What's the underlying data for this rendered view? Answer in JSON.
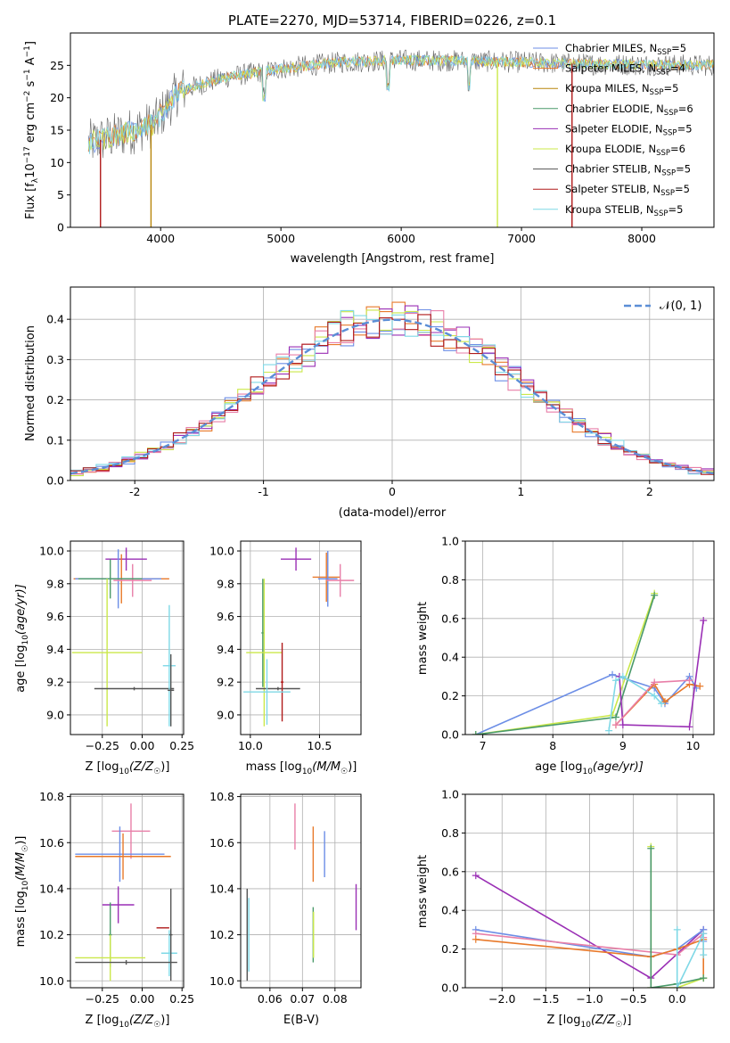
{
  "colors": {
    "Chabrier MILES": "#6c8ee6",
    "Salpeter MILES": "#e8792a",
    "Kroupa MILES": "#b8860b",
    "Chabrier ELODIE": "#4a9a6a",
    "Salpeter ELODIE": "#9a2fb5",
    "Kroupa ELODIE": "#cbe84a",
    "Chabrier STELIB": "#555555",
    "Salpeter STELIB": "#b01a1a",
    "Kroupa STELIB": "#7fd8e6",
    "Pink": "#e87fa8",
    "Normal": "#5b8ed6"
  },
  "chart_data": [
    {
      "id": "spectrum",
      "type": "line",
      "title": "PLATE=2270, MJD=53714, FIBERID=0226, z=0.1",
      "xlabel": "wavelength [Angstrom, rest frame]",
      "ylabel_main": "Flux [f",
      "ylabel_sub1": "λ",
      "ylabel_mid": "10",
      "ylabel_sup1": "−17",
      "ylabel_rest": " erg cm",
      "ylabel_sup2": "−2",
      "ylabel_rest2": " s",
      "ylabel_sup3": "−1",
      "ylabel_rest3": " A",
      "ylabel_sup4": "−1",
      "ylabel_end": "]",
      "xlim": [
        3250,
        8600
      ],
      "ylim": [
        0,
        30
      ],
      "xticks": [
        4000,
        5000,
        6000,
        7000,
        8000
      ],
      "yticks": [
        0,
        5,
        10,
        15,
        20,
        25
      ],
      "legend": [
        {
          "name": "Chabrier MILES, N",
          "sub": "SSP",
          "val": "=5"
        },
        {
          "name": "Salpeter MILES, N",
          "sub": "SSP",
          "val": "=4"
        },
        {
          "name": "Kroupa MILES, N",
          "sub": "SSP",
          "val": "=5"
        },
        {
          "name": "Chabrier ELODIE, N",
          "sub": "SSP",
          "val": "=6"
        },
        {
          "name": "Salpeter ELODIE, N",
          "sub": "SSP",
          "val": "=5"
        },
        {
          "name": "Kroupa ELODIE, N",
          "sub": "SSP",
          "val": "=6"
        },
        {
          "name": "Chabrier STELIB, N",
          "sub": "SSP",
          "val": "=5"
        },
        {
          "name": "Salpeter STELIB, N",
          "sub": "SSP",
          "val": "=5"
        },
        {
          "name": "Kroupa STELIB, N",
          "sub": "SSP",
          "val": "=5"
        }
      ],
      "spectrum_anchor": {
        "x": [
          3400,
          3700,
          3950,
          4150,
          4500,
          5000,
          5500,
          6000,
          6500,
          7000,
          7500,
          8600
        ],
        "y": [
          13,
          14.5,
          16,
          21,
          23,
          24.5,
          25.5,
          25.8,
          25.7,
          25.5,
          25.2,
          25
        ]
      },
      "drops": [
        {
          "x": 3500,
          "color": "Salpeter STELIB"
        },
        {
          "x": 3920,
          "color": "Kroupa MILES"
        },
        {
          "x": 6800,
          "color": "Kroupa ELODIE"
        },
        {
          "x": 7420,
          "color": "Salpeter STELIB"
        }
      ]
    },
    {
      "id": "residuals",
      "type": "line",
      "xlabel": "(data-model)/error",
      "ylabel": "Normed distribution",
      "xlim": [
        -2.5,
        2.5
      ],
      "ylim": [
        0,
        0.48
      ],
      "xticks": [
        -2,
        -1,
        0,
        1,
        2
      ],
      "yticks": [
        0.0,
        0.1,
        0.2,
        0.3,
        0.4
      ],
      "legend": "𝒩(0, 1)",
      "normal": {
        "mean": 0,
        "sigma": 1
      }
    },
    {
      "id": "age-vs-Z",
      "type": "scatter",
      "xlabel": "Z [log",
      "xlabel_sub": "10",
      "xlabel_rest": "(Z/Z",
      "xlabel_sub2": "☉",
      "xlabel_end": ")]",
      "ylabel": "age  [log",
      "ylabel_sub": "10",
      "ylabel_rest": "(age/yr)]",
      "xlim": [
        -0.45,
        0.26
      ],
      "ylim": [
        8.88,
        10.06
      ],
      "xticks": [
        -0.25,
        0.0,
        0.25
      ],
      "xticklabels": [
        "−0.25",
        "0.00",
        "0.25"
      ],
      "yticks": [
        9.0,
        9.2,
        9.4,
        9.6,
        9.8,
        10.0
      ],
      "points": [
        {
          "x": -0.1,
          "y": 9.95,
          "xerr": 0.13,
          "yerr": 0.07,
          "color": "Salpeter ELODIE"
        },
        {
          "x": -0.13,
          "y": 9.83,
          "xerr": 0.3,
          "yerr": 0.15,
          "color": "Salpeter MILES"
        },
        {
          "x": -0.15,
          "y": 9.83,
          "xerr": 0.27,
          "yerr": 0.18,
          "color": "Chabrier MILES"
        },
        {
          "x": -0.06,
          "y": 9.82,
          "xerr": 0.12,
          "yerr": 0.1,
          "color": "Pink"
        },
        {
          "x": -0.2,
          "y": 9.83,
          "xerr": 0.2,
          "yerr": 0.12,
          "color": "Chabrier ELODIE"
        },
        {
          "x": -0.22,
          "y": 9.38,
          "xerr": 0.22,
          "yerr": 0.45,
          "color": "Kroupa ELODIE"
        },
        {
          "x": -0.05,
          "y": 9.16,
          "xerr": 0.25,
          "yerr": 0.01,
          "color": "Chabrier STELIB"
        },
        {
          "x": 0.17,
          "y": 9.3,
          "xerr": 0.04,
          "yerr": 0.37,
          "color": "Kroupa STELIB"
        },
        {
          "x": 0.18,
          "y": 9.15,
          "xerr": 0.02,
          "yerr": 0.22,
          "color": "Chabrier STELIB"
        }
      ]
    },
    {
      "id": "age-vs-mass",
      "type": "scatter",
      "xlabel": "mass [log",
      "xlabel_sub": "10",
      "xlabel_rest": "(M/M",
      "xlabel_sub2": "☉",
      "xlabel_end": ")]",
      "xlim": [
        9.93,
        10.8
      ],
      "ylim": [
        8.88,
        10.06
      ],
      "xticks": [
        10.0,
        10.5
      ],
      "xticklabels": [
        "10.0",
        "10.5"
      ],
      "yticks": [
        9.0,
        9.2,
        9.4,
        9.6,
        9.8,
        10.0
      ],
      "points": [
        {
          "x": 10.33,
          "y": 9.95,
          "xerr": 0.11,
          "yerr": 0.07,
          "color": "Salpeter ELODIE"
        },
        {
          "x": 10.55,
          "y": 9.84,
          "xerr": 0.1,
          "yerr": 0.15,
          "color": "Salpeter MILES"
        },
        {
          "x": 10.56,
          "y": 9.83,
          "xerr": 0.07,
          "yerr": 0.17,
          "color": "Chabrier MILES"
        },
        {
          "x": 10.65,
          "y": 9.82,
          "xerr": 0.1,
          "yerr": 0.1,
          "color": "Pink"
        },
        {
          "x": 10.09,
          "y": 9.5,
          "xerr": 0.01,
          "yerr": 0.33,
          "color": "Chabrier ELODIE"
        },
        {
          "x": 10.1,
          "y": 9.38,
          "xerr": 0.13,
          "yerr": 0.45,
          "color": "Kroupa ELODIE"
        },
        {
          "x": 10.2,
          "y": 9.16,
          "xerr": 0.16,
          "yerr": 0.01,
          "color": "Chabrier STELIB"
        },
        {
          "x": 10.23,
          "y": 9.2,
          "xerr": 0.01,
          "yerr": 0.24,
          "color": "Salpeter STELIB"
        },
        {
          "x": 10.12,
          "y": 9.14,
          "xerr": 0.17,
          "yerr": 0.2,
          "color": "Kroupa STELIB"
        }
      ]
    },
    {
      "id": "mass-weight-vs-age",
      "type": "line",
      "xlabel": "age  [log",
      "xlabel_sub": "10",
      "xlabel_rest": "(age/yr)]",
      "ylabel": "mass weight",
      "xlim": [
        6.75,
        10.3
      ],
      "ylim": [
        0,
        1.0
      ],
      "xticks": [
        7,
        8,
        9,
        10
      ],
      "yticks": [
        0.0,
        0.2,
        0.4,
        0.6,
        0.8,
        1.0
      ],
      "series": [
        {
          "color": "Chabrier MILES",
          "x": [
            6.9,
            8.85,
            9.45,
            9.6,
            9.95,
            10.05
          ],
          "y": [
            0.0,
            0.31,
            0.24,
            0.16,
            0.3,
            0.24
          ]
        },
        {
          "color": "Salpeter MILES",
          "x": [
            8.9,
            9.45,
            9.6,
            9.95,
            10.1
          ],
          "y": [
            0.05,
            0.26,
            0.17,
            0.26,
            0.25
          ]
        },
        {
          "color": "Kroupa ELODIE",
          "x": [
            6.9,
            8.85,
            9.45
          ],
          "y": [
            0.0,
            0.1,
            0.73
          ]
        },
        {
          "color": "Chabrier ELODIE",
          "x": [
            6.9,
            8.9,
            9.45
          ],
          "y": [
            0.0,
            0.09,
            0.72
          ]
        },
        {
          "color": "Salpeter ELODIE",
          "x": [
            8.95,
            9.0,
            9.95,
            10.15
          ],
          "y": [
            0.3,
            0.05,
            0.04,
            0.59
          ]
        },
        {
          "color": "Kroupa STELIB",
          "x": [
            8.8,
            8.9,
            9.0,
            9.45,
            9.55
          ],
          "y": [
            0.02,
            0.28,
            0.3,
            0.2,
            0.16
          ]
        },
        {
          "color": "Pink",
          "x": [
            8.9,
            9.45,
            9.95
          ],
          "y": [
            0.05,
            0.27,
            0.28
          ]
        }
      ]
    },
    {
      "id": "mass-vs-Z",
      "type": "scatter",
      "xlabel": "Z [log",
      "xlabel_sub": "10",
      "xlabel_rest": "(Z/Z",
      "xlabel_sub2": "☉",
      "xlabel_end": ")]",
      "ylabel": "mass [log",
      "ylabel_sub": "10",
      "ylabel_rest": "(M/M",
      "ylabel_sub2": "☉",
      "ylabel_end": ")]",
      "xlim": [
        -0.45,
        0.26
      ],
      "ylim": [
        9.97,
        10.81
      ],
      "xticks": [
        -0.25,
        0.0,
        0.25
      ],
      "xticklabels": [
        "−0.25",
        "0.00",
        "0.25"
      ],
      "yticks": [
        10.0,
        10.2,
        10.4,
        10.6,
        10.8
      ],
      "points": [
        {
          "x": -0.07,
          "y": 10.65,
          "xerr": 0.12,
          "yerr": 0.12,
          "color": "Pink"
        },
        {
          "x": -0.14,
          "y": 10.55,
          "xerr": 0.28,
          "yerr": 0.12,
          "color": "Chabrier MILES"
        },
        {
          "x": -0.12,
          "y": 10.54,
          "xerr": 0.3,
          "yerr": 0.1,
          "color": "Salpeter MILES"
        },
        {
          "x": -0.15,
          "y": 10.33,
          "xerr": 0.1,
          "yerr": 0.08,
          "color": "Salpeter ELODIE"
        },
        {
          "x": 0.13,
          "y": 10.23,
          "xerr": 0.04,
          "yerr": 0.0,
          "color": "Salpeter STELIB"
        },
        {
          "x": 0.17,
          "y": 10.12,
          "xerr": 0.05,
          "yerr": 0.1,
          "color": "Kroupa STELIB"
        },
        {
          "x": -0.2,
          "y": 10.2,
          "xerr": 0.01,
          "yerr": 0.14,
          "color": "Chabrier ELODIE"
        },
        {
          "x": -0.2,
          "y": 10.1,
          "xerr": 0.22,
          "yerr": 0.1,
          "color": "Kroupa ELODIE"
        },
        {
          "x": -0.1,
          "y": 10.08,
          "xerr": 0.32,
          "yerr": 0.01,
          "color": "Chabrier STELIB"
        },
        {
          "x": 0.18,
          "y": 10.2,
          "xerr": 0.01,
          "yerr": 0.2,
          "color": "Chabrier STELIB"
        }
      ]
    },
    {
      "id": "mass-vs-EBV",
      "type": "scatter",
      "xlabel": "E(B-V)",
      "xlim": [
        0.051,
        0.088
      ],
      "ylim": [
        9.97,
        10.81
      ],
      "xticks": [
        0.06,
        0.07,
        0.08
      ],
      "xticklabels": [
        "0.06",
        "0.07",
        "0.08"
      ],
      "yticks": [
        10.0,
        10.2,
        10.4,
        10.6,
        10.8
      ],
      "points": [
        {
          "x": 0.053,
          "y": 10.2,
          "xerr": 0,
          "yerr": 0.2,
          "color": "Chabrier STELIB"
        },
        {
          "x": 0.0535,
          "y": 10.2,
          "xerr": 0,
          "yerr": 0.16,
          "color": "Kroupa STELIB"
        },
        {
          "x": 0.0677,
          "y": 10.67,
          "xerr": 0,
          "yerr": 0.1,
          "color": "Pink"
        },
        {
          "x": 0.0733,
          "y": 10.55,
          "xerr": 0,
          "yerr": 0.12,
          "color": "Salpeter MILES"
        },
        {
          "x": 0.0733,
          "y": 10.2,
          "xerr": 0,
          "yerr": 0.12,
          "color": "Chabrier ELODIE"
        },
        {
          "x": 0.0734,
          "y": 10.2,
          "xerr": 0,
          "yerr": 0.1,
          "color": "Kroupa ELODIE"
        },
        {
          "x": 0.0768,
          "y": 10.55,
          "xerr": 0,
          "yerr": 0.1,
          "color": "Chabrier MILES"
        },
        {
          "x": 0.0865,
          "y": 10.32,
          "xerr": 0,
          "yerr": 0.1,
          "color": "Salpeter ELODIE"
        }
      ]
    },
    {
      "id": "mass-weight-vs-Z",
      "type": "line",
      "xlabel": "Z [log",
      "xlabel_sub": "10",
      "xlabel_rest": "(Z/Z",
      "xlabel_sub2": "☉",
      "xlabel_end": ")]",
      "ylabel": "mass weight",
      "xlim": [
        -2.42,
        0.42
      ],
      "ylim": [
        0,
        1.0
      ],
      "xticks": [
        -2.0,
        -1.5,
        -1.0,
        -0.5,
        0.0
      ],
      "xticklabels": [
        "−2.0",
        "−1.5",
        "−1.0",
        "−0.5",
        "0.0"
      ],
      "yticks": [
        0.0,
        0.2,
        0.4,
        0.6,
        0.8,
        1.0
      ],
      "series": [
        {
          "color": "Salpeter ELODIE",
          "x": [
            -2.3,
            -0.3,
            0.3
          ],
          "y": [
            0.58,
            0.05,
            0.3
          ]
        },
        {
          "color": "Chabrier MILES",
          "x": [
            -2.3,
            -0.3,
            0.0,
            0.3,
            0.3
          ],
          "y": [
            0.3,
            0.16,
            0.2,
            0.3,
            0.24
          ]
        },
        {
          "color": "Pink",
          "x": [
            -2.3,
            0.0,
            0.3,
            0.3
          ],
          "y": [
            0.28,
            0.17,
            0.28,
            0.26
          ]
        },
        {
          "color": "Salpeter MILES",
          "x": [
            -2.3,
            -0.3,
            0.0,
            0.3,
            0.3
          ],
          "y": [
            0.25,
            0.16,
            0.2,
            0.25,
            0.05
          ]
        },
        {
          "color": "Kroupa ELODIE",
          "x": [
            -0.3,
            -0.3,
            0.0,
            0.3
          ],
          "y": [
            0.73,
            0.0,
            0.0,
            0.05
          ]
        },
        {
          "color": "Chabrier ELODIE",
          "x": [
            -0.3,
            -0.3,
            0.0,
            0.3
          ],
          "y": [
            0.72,
            0.0,
            0.02,
            0.05
          ]
        },
        {
          "color": "Kroupa STELIB",
          "x": [
            0.0,
            0.0,
            0.3,
            0.3
          ],
          "y": [
            0.3,
            0.0,
            0.28,
            0.17
          ]
        }
      ]
    }
  ]
}
